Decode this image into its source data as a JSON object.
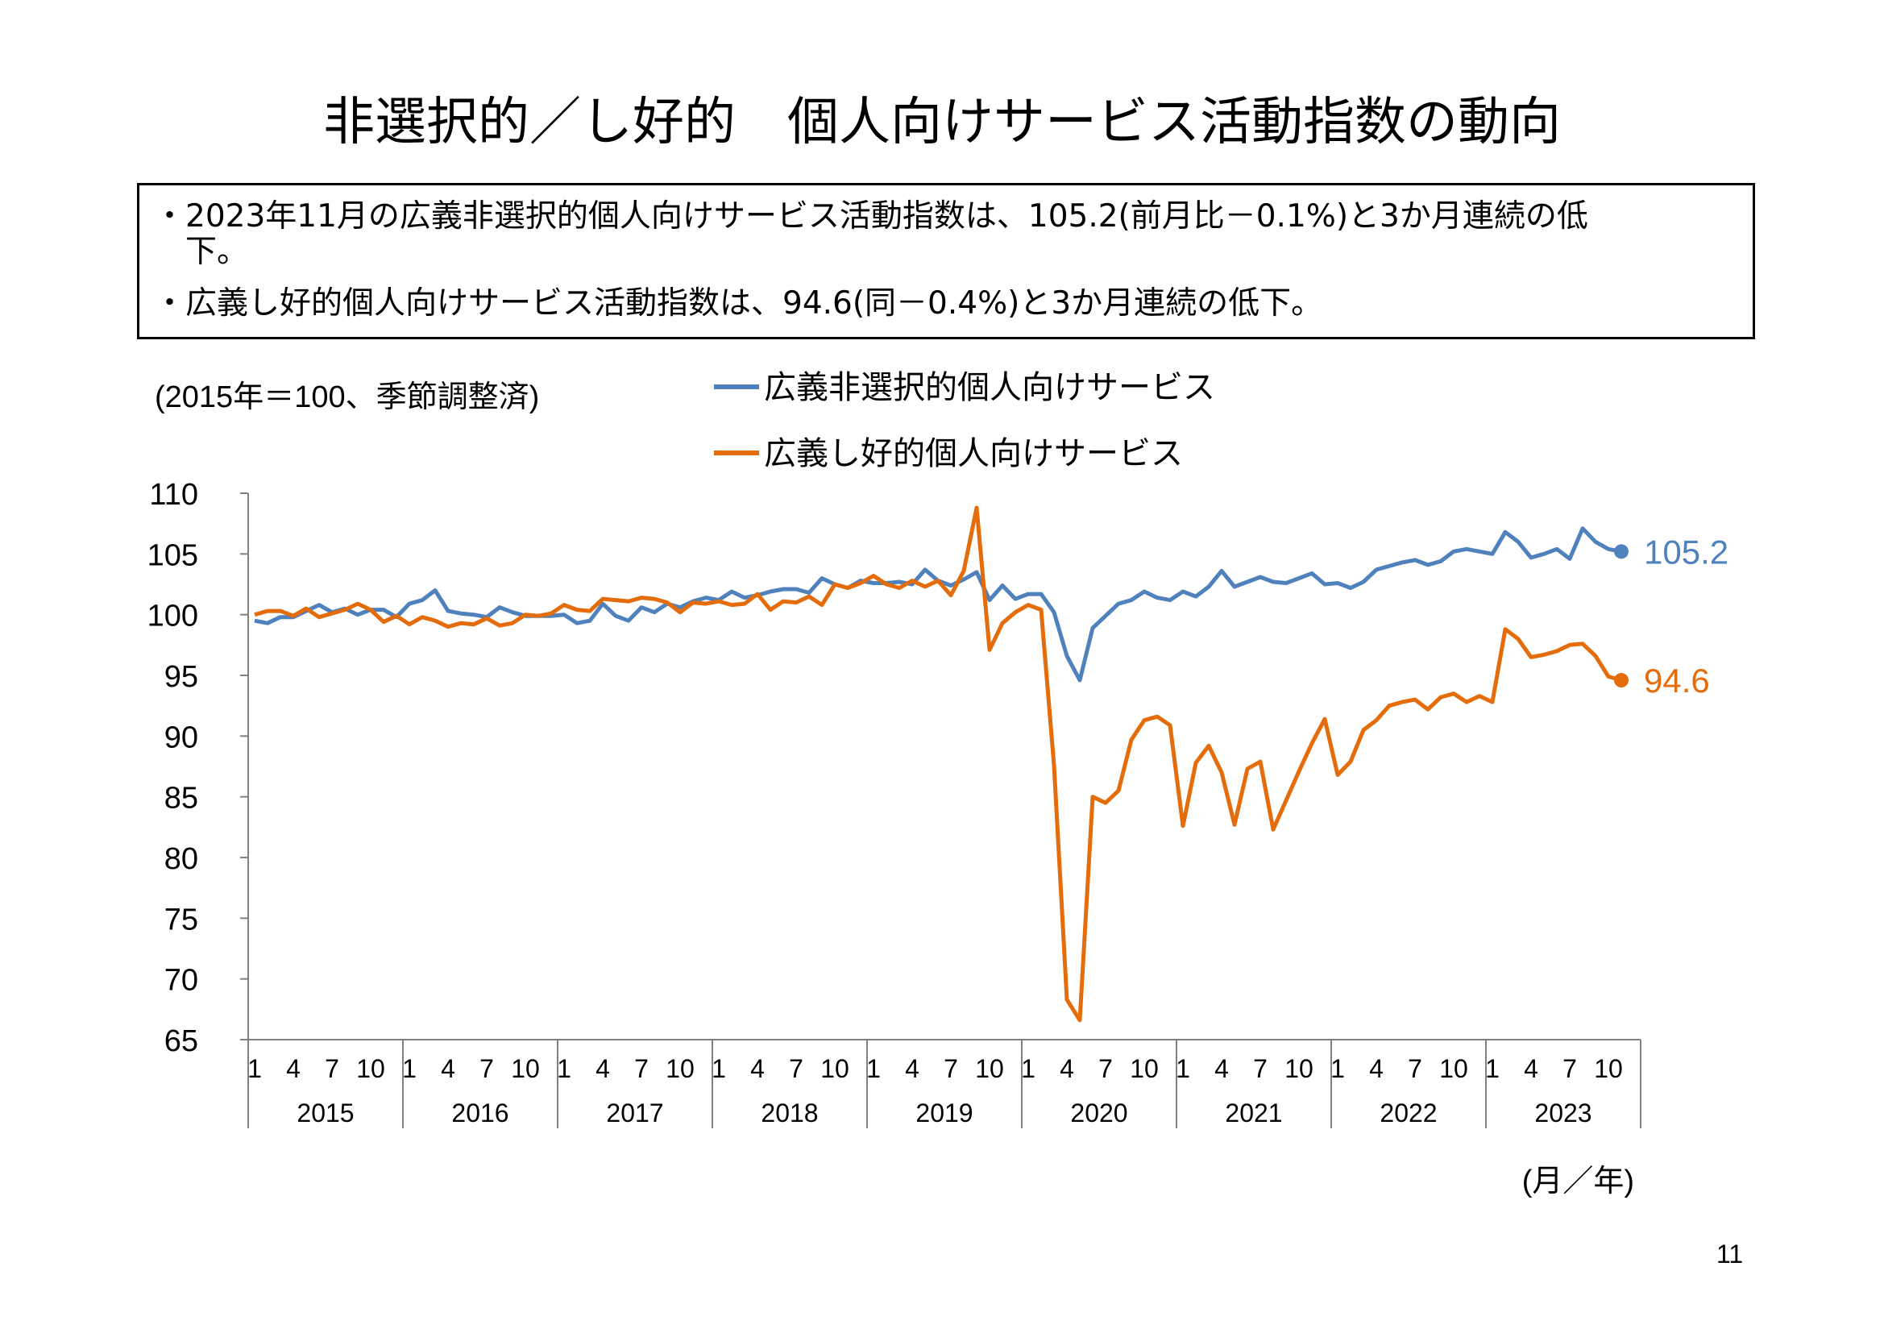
{
  "page": {
    "title": "非選択的／し好的　個人向けサービス活動指数の動向",
    "bullets": [
      "・2023年11月の広義非選択的個人向けサービス活動指数は、105.2(前月比－0.1%)と3か月連続の低",
      "　下。",
      "・広義し好的個人向けサービス活動指数は、94.6(同－0.4%)と3か月連続の低下。"
    ],
    "page_number": "11"
  },
  "chart_data": {
    "type": "line",
    "unit_note": "(2015年＝100、季節調整済)",
    "x_unit_label": "(月／年)",
    "ylim": [
      65,
      110
    ],
    "yticks": [
      65,
      70,
      75,
      80,
      85,
      90,
      95,
      100,
      105,
      110
    ],
    "months_per_year": 12,
    "month_tick_labels": [
      "1",
      "4",
      "7",
      "10"
    ],
    "years": [
      "2015",
      "2016",
      "2017",
      "2018",
      "2019",
      "2020",
      "2021",
      "2022",
      "2023"
    ],
    "series": [
      {
        "name": "広義非選択的個人向けサービス",
        "color": "#4F81BD",
        "end_label": "105.2",
        "values": [
          99.5,
          99.3,
          99.8,
          99.8,
          100.3,
          100.8,
          100.2,
          100.5,
          100.0,
          100.4,
          100.4,
          99.8,
          100.9,
          101.2,
          102.0,
          100.3,
          100.1,
          100.0,
          99.8,
          100.6,
          100.2,
          99.9,
          99.9,
          99.9,
          100.0,
          99.3,
          99.5,
          100.9,
          99.9,
          99.5,
          100.6,
          100.2,
          100.9,
          100.6,
          101.1,
          101.4,
          101.2,
          101.9,
          101.4,
          101.6,
          101.9,
          102.1,
          102.1,
          101.8,
          103.0,
          102.5,
          102.2,
          102.8,
          102.6,
          102.6,
          102.7,
          102.5,
          103.7,
          102.8,
          102.4,
          102.9,
          103.5,
          101.2,
          102.4,
          101.3,
          101.7,
          101.7,
          100.2,
          96.6,
          94.6,
          98.9,
          99.9,
          100.9,
          101.2,
          101.9,
          101.4,
          101.2,
          101.9,
          101.5,
          102.3,
          103.6,
          102.3,
          102.7,
          103.1,
          102.7,
          102.6,
          103.0,
          103.4,
          102.5,
          102.6,
          102.2,
          102.7,
          103.7,
          104.0,
          104.3,
          104.5,
          104.1,
          104.4,
          105.2,
          105.4,
          105.2,
          105.0,
          106.8,
          106.0,
          104.7,
          105.0,
          105.4,
          104.6,
          107.1,
          106.0,
          105.4,
          105.2
        ]
      },
      {
        "name": "広義し好的個人向けサービス",
        "color": "#E46C0A",
        "end_label": "94.6",
        "values": [
          100.0,
          100.3,
          100.3,
          99.9,
          100.5,
          99.8,
          100.1,
          100.4,
          100.9,
          100.4,
          99.4,
          99.9,
          99.2,
          99.8,
          99.5,
          99.0,
          99.3,
          99.2,
          99.7,
          99.1,
          99.3,
          100.0,
          99.9,
          100.1,
          100.8,
          100.4,
          100.3,
          101.3,
          101.2,
          101.1,
          101.4,
          101.3,
          101.0,
          100.2,
          101.0,
          100.9,
          101.1,
          100.8,
          100.9,
          101.7,
          100.4,
          101.1,
          101.0,
          101.5,
          100.8,
          102.5,
          102.2,
          102.6,
          103.2,
          102.5,
          102.2,
          102.8,
          102.3,
          102.8,
          101.6,
          103.6,
          108.8,
          97.1,
          99.3,
          100.2,
          100.8,
          100.4,
          87.6,
          68.3,
          66.6,
          85.0,
          84.5,
          85.5,
          89.7,
          91.3,
          91.6,
          90.9,
          82.6,
          87.8,
          89.2,
          87.0,
          82.7,
          87.3,
          87.9,
          82.3,
          84.7,
          87.1,
          89.4,
          91.4,
          86.8,
          87.9,
          90.5,
          91.3,
          92.5,
          92.8,
          93.0,
          92.2,
          93.2,
          93.5,
          92.8,
          93.3,
          92.8,
          98.8,
          98.0,
          96.5,
          96.7,
          97.0,
          97.5,
          97.6,
          96.6,
          94.9,
          94.6
        ]
      }
    ]
  }
}
